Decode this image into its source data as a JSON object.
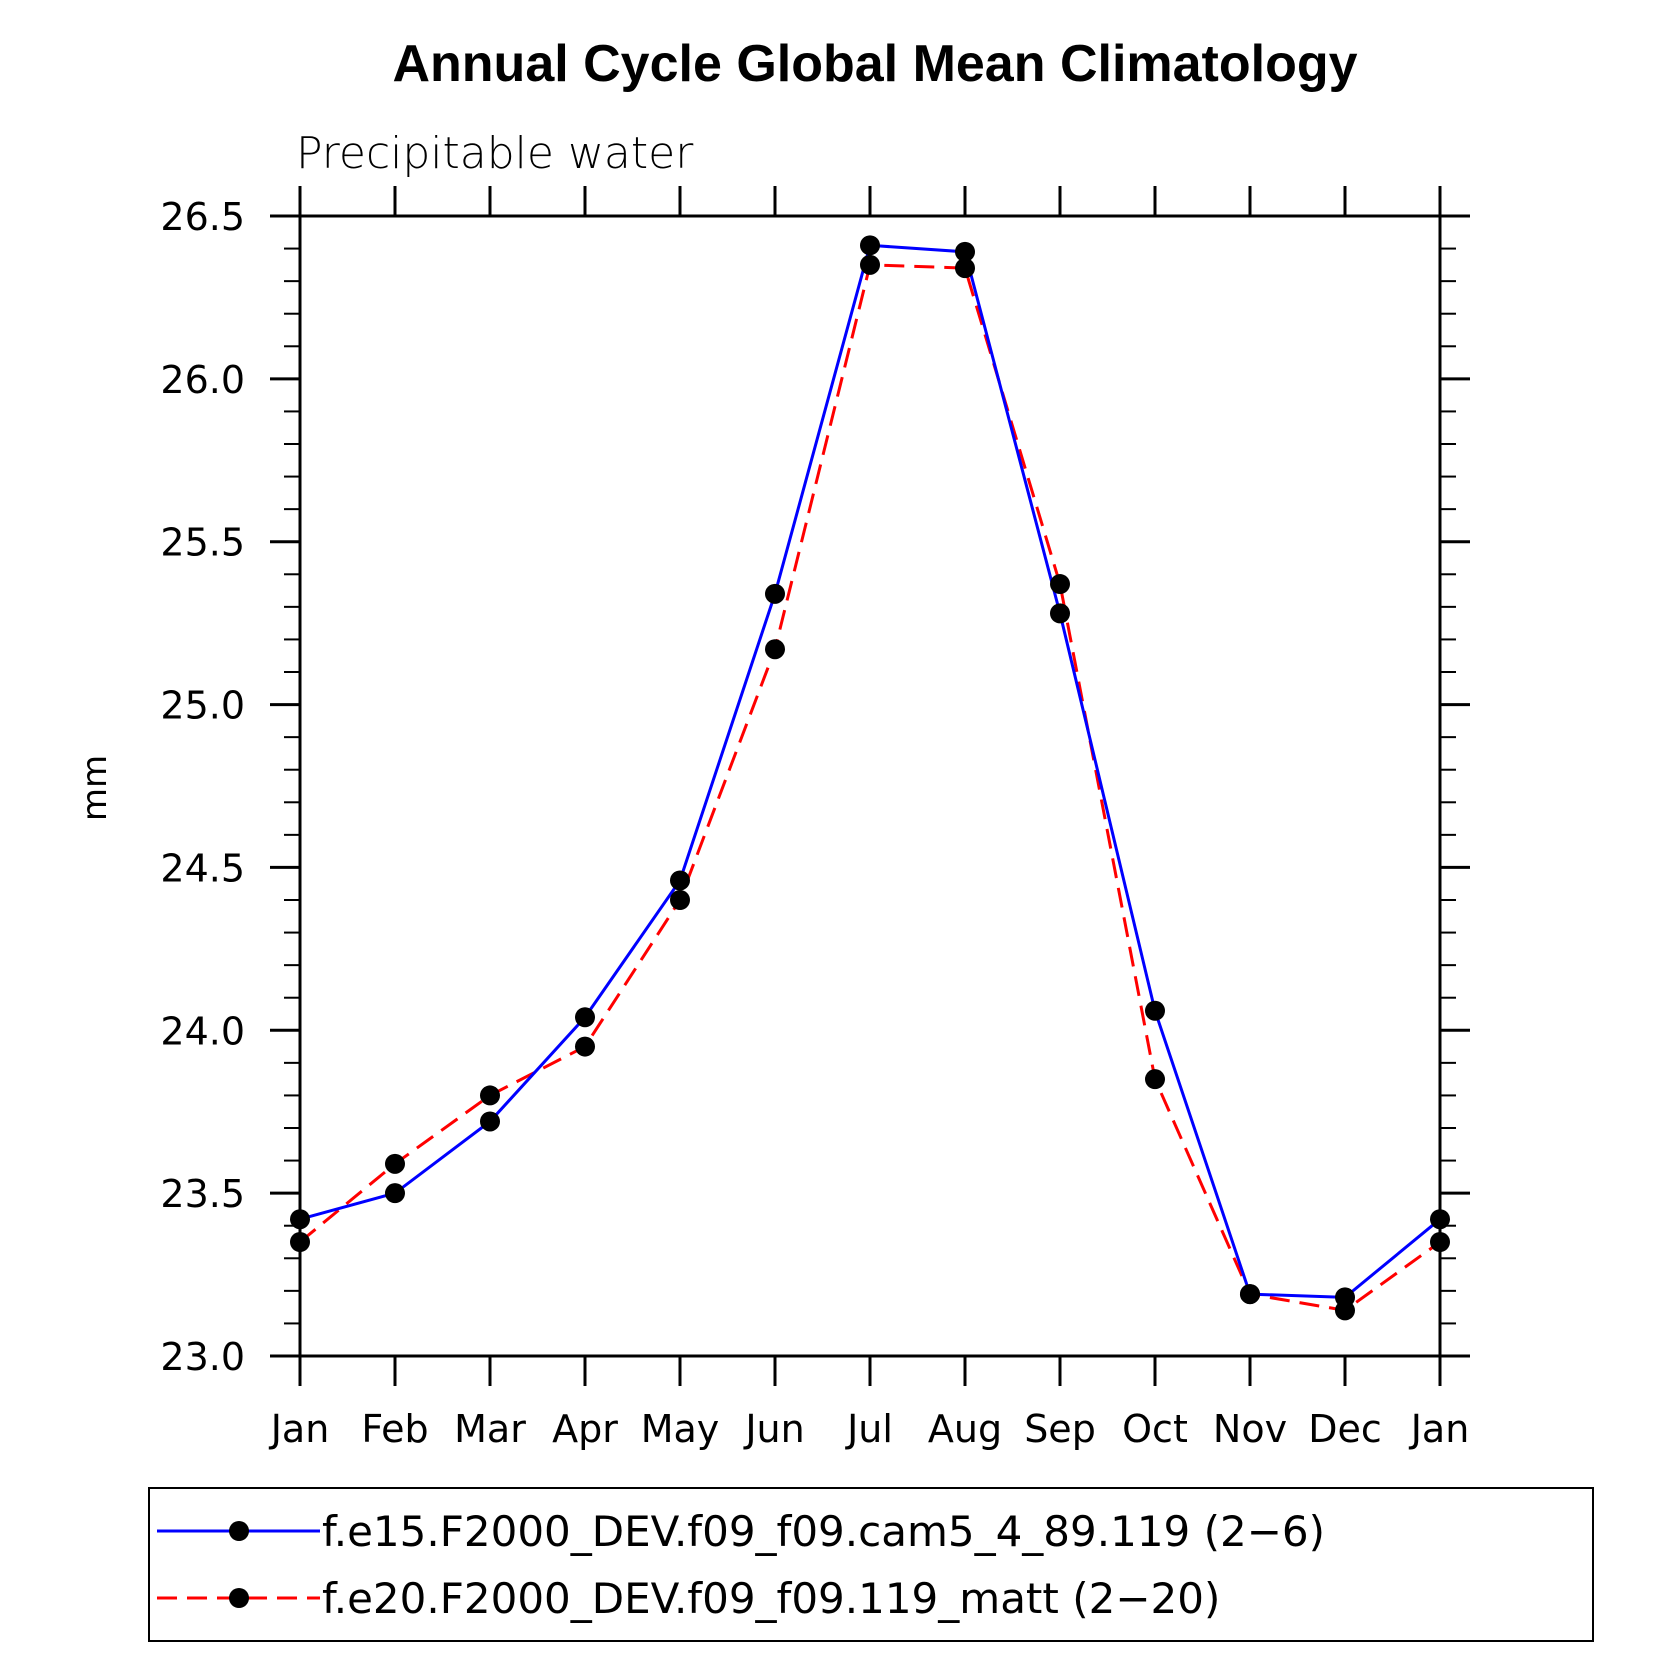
{
  "chart_data": {
    "type": "line",
    "title": "Annual Cycle Global Mean Climatology",
    "subtitle": "Precipitable water",
    "xlabel": "",
    "ylabel": "mm",
    "categories": [
      "Jan",
      "Feb",
      "Mar",
      "Apr",
      "May",
      "Jun",
      "Jul",
      "Aug",
      "Sep",
      "Oct",
      "Nov",
      "Dec",
      "Jan"
    ],
    "ylim": [
      23.0,
      26.5
    ],
    "yticks": [
      "23.0",
      "23.5",
      "24.0",
      "24.5",
      "25.0",
      "25.5",
      "26.0",
      "26.5"
    ],
    "ytick_values": [
      23.0,
      23.5,
      24.0,
      24.5,
      25.0,
      25.5,
      26.0,
      26.5
    ],
    "legend_position": "bottom",
    "series": [
      {
        "name": "f.e15.F2000_DEV.f09_f09.cam5_4_89.119 (2−6)",
        "color": "#0000ff",
        "line_style": "solid",
        "marker": "filled-circle",
        "values": [
          23.42,
          23.5,
          23.72,
          24.04,
          24.46,
          25.34,
          26.41,
          26.39,
          25.28,
          24.06,
          23.19,
          23.18,
          23.42
        ]
      },
      {
        "name": "f.e20.F2000_DEV.f09_f09.119_matt (2−20)",
        "color": "#ff0000",
        "line_style": "dashed",
        "marker": "filled-circle",
        "values": [
          23.35,
          23.59,
          23.8,
          23.95,
          24.4,
          25.17,
          26.35,
          26.34,
          25.37,
          23.85,
          23.19,
          23.14,
          23.35
        ]
      }
    ]
  }
}
